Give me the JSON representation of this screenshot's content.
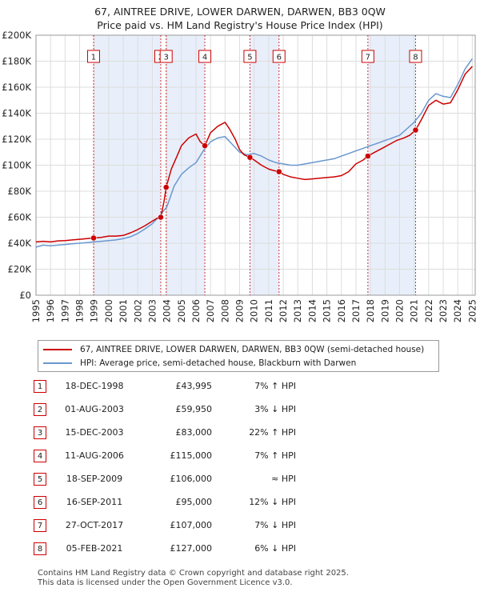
{
  "title": {
    "line1": "67, AINTREE DRIVE, LOWER DARWEN, DARWEN, BB3 0QW",
    "line2": "Price paid vs. HM Land Registry's House Price Index (HPI)"
  },
  "colors": {
    "price_line": "#cc0000",
    "hpi_line": "#6a97cf",
    "shade": "#e8effa",
    "grid": "#dddddd",
    "marker_border": "#cc0000"
  },
  "legend": {
    "series1": "67, AINTREE DRIVE, LOWER DARWEN, DARWEN, BB3 0QW (semi-detached house)",
    "series2": "HPI: Average price, semi-detached house, Blackburn with Darwen"
  },
  "chart_data": {
    "type": "line",
    "xlim": [
      1995,
      2025.2
    ],
    "ylim": [
      0,
      200000
    ],
    "y_ticks": [
      "£0",
      "£20K",
      "£40K",
      "£60K",
      "£80K",
      "£100K",
      "£120K",
      "£140K",
      "£160K",
      "£180K",
      "£200K"
    ],
    "y_tick_values": [
      0,
      20000,
      40000,
      60000,
      80000,
      100000,
      120000,
      140000,
      160000,
      180000,
      200000
    ],
    "x_ticks": [
      "1995",
      "1996",
      "1997",
      "1998",
      "1999",
      "2000",
      "2001",
      "2002",
      "2003",
      "2004",
      "2005",
      "2006",
      "2007",
      "2008",
      "2009",
      "2010",
      "2011",
      "2012",
      "2013",
      "2014",
      "2015",
      "2016",
      "2017",
      "2018",
      "2019",
      "2020",
      "2021",
      "2022",
      "2023",
      "2024",
      "2025"
    ],
    "shaded_ranges": [
      [
        1998.96,
        2003.58
      ],
      [
        2003.95,
        2006.61
      ],
      [
        2009.71,
        2011.71
      ],
      [
        2017.82,
        2021.1
      ]
    ],
    "series": [
      {
        "name": "67, AINTREE DRIVE, LOWER DARWEN, DARWEN, BB3 0QW (semi-detached house)",
        "x": [
          1995,
          1995.5,
          1996,
          1996.5,
          1997,
          1997.5,
          1998,
          1998.5,
          1998.96,
          1999.5,
          2000,
          2000.5,
          2001,
          2001.5,
          2002,
          2002.5,
          2003,
          2003.3,
          2003.58,
          2003.8,
          2003.95,
          2004.3,
          2004.7,
          2005,
          2005.5,
          2006,
          2006.3,
          2006.61,
          2007,
          2007.5,
          2008,
          2008.3,
          2008.7,
          2009,
          2009.3,
          2009.71,
          2010,
          2010.5,
          2011,
          2011.3,
          2011.71,
          2012,
          2012.5,
          2013,
          2013.5,
          2014,
          2014.5,
          2015,
          2015.5,
          2016,
          2016.5,
          2017,
          2017.5,
          2017.82,
          2018.3,
          2018.8,
          2019.3,
          2019.8,
          2020.3,
          2020.7,
          2021.1,
          2021.5,
          2022,
          2022.5,
          2023,
          2023.5,
          2024,
          2024.5,
          2025
        ],
        "values": [
          41000,
          41500,
          41000,
          41800,
          42000,
          42500,
          43000,
          43500,
          43995,
          44500,
          45500,
          45500,
          46000,
          48000,
          50500,
          53500,
          57000,
          59000,
          59950,
          72000,
          83000,
          97000,
          107000,
          115000,
          121000,
          124000,
          118000,
          115000,
          125000,
          130000,
          133000,
          128000,
          120000,
          112000,
          108000,
          106000,
          104000,
          100000,
          97000,
          96000,
          95000,
          93000,
          91000,
          90000,
          89000,
          89500,
          90000,
          90500,
          91000,
          92000,
          95000,
          101000,
          104000,
          107000,
          110000,
          113000,
          116000,
          119000,
          121000,
          123000,
          127000,
          135000,
          146000,
          150000,
          147000,
          148000,
          158000,
          170000,
          176000
        ]
      },
      {
        "name": "HPI: Average price, semi-detached house, Blackburn with Darwen",
        "x": [
          1995,
          1995.5,
          1996,
          1996.5,
          1997,
          1997.5,
          1998,
          1998.5,
          1999,
          1999.5,
          2000,
          2000.5,
          2001,
          2001.5,
          2002,
          2002.5,
          2003,
          2003.5,
          2004,
          2004.5,
          2005,
          2005.5,
          2006,
          2006.5,
          2007,
          2007.5,
          2008,
          2008.5,
          2009,
          2009.5,
          2010,
          2010.5,
          2011,
          2011.5,
          2012,
          2012.5,
          2013,
          2013.5,
          2014,
          2014.5,
          2015,
          2015.5,
          2016,
          2016.5,
          2017,
          2017.5,
          2018,
          2018.5,
          2019,
          2019.5,
          2020,
          2020.5,
          2021,
          2021.5,
          2022,
          2022.5,
          2023,
          2023.5,
          2024,
          2024.5,
          2025
        ],
        "values": [
          37000,
          38500,
          38000,
          38500,
          39000,
          39500,
          40000,
          40500,
          41000,
          41500,
          42000,
          42500,
          43500,
          45000,
          47500,
          51000,
          55000,
          61000,
          68000,
          84000,
          93000,
          98000,
          102000,
          111000,
          118000,
          121000,
          122000,
          116000,
          110000,
          108000,
          109000,
          107000,
          104000,
          102000,
          101000,
          100000,
          100000,
          101000,
          102000,
          103000,
          104000,
          105000,
          107000,
          109000,
          111000,
          113000,
          115000,
          117000,
          119000,
          121000,
          123000,
          128000,
          133000,
          140000,
          150000,
          155000,
          153000,
          152000,
          162000,
          174000,
          182000
        ]
      }
    ],
    "sales": [
      {
        "label": "1",
        "x": 1998.96,
        "value": 43995
      },
      {
        "label": "2",
        "x": 2003.58,
        "value": 59950
      },
      {
        "label": "3",
        "x": 2003.95,
        "value": 83000
      },
      {
        "label": "4",
        "x": 2006.61,
        "value": 115000
      },
      {
        "label": "5",
        "x": 2009.71,
        "value": 106000
      },
      {
        "label": "6",
        "x": 2011.71,
        "value": 95000
      },
      {
        "label": "7",
        "x": 2017.82,
        "value": 107000
      },
      {
        "label": "8",
        "x": 2021.1,
        "value": 127000
      }
    ]
  },
  "table": [
    {
      "num": "1",
      "date": "18-DEC-1998",
      "price": "£43,995",
      "hpi": "7% ↑ HPI"
    },
    {
      "num": "2",
      "date": "01-AUG-2003",
      "price": "£59,950",
      "hpi": "3% ↓ HPI"
    },
    {
      "num": "3",
      "date": "15-DEC-2003",
      "price": "£83,000",
      "hpi": "22% ↑ HPI"
    },
    {
      "num": "4",
      "date": "11-AUG-2006",
      "price": "£115,000",
      "hpi": "7% ↑ HPI"
    },
    {
      "num": "5",
      "date": "18-SEP-2009",
      "price": "£106,000",
      "hpi": "≈ HPI"
    },
    {
      "num": "6",
      "date": "16-SEP-2011",
      "price": "£95,000",
      "hpi": "12% ↓ HPI"
    },
    {
      "num": "7",
      "date": "27-OCT-2017",
      "price": "£107,000",
      "hpi": "7% ↓ HPI"
    },
    {
      "num": "8",
      "date": "05-FEB-2021",
      "price": "£127,000",
      "hpi": "6% ↓ HPI"
    }
  ],
  "footer": {
    "line1": "Contains HM Land Registry data © Crown copyright and database right 2025.",
    "line2": "This data is licensed under the Open Government Licence v3.0."
  }
}
